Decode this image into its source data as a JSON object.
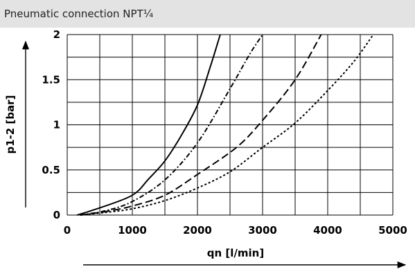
{
  "header": {
    "title": "Pneumatic connection NPT¼"
  },
  "chart_data": {
    "type": "line",
    "title": "",
    "xlabel": "qn [l/min]",
    "ylabel": "p1-2 [bar]",
    "xlim": [
      0,
      5000
    ],
    "ylim": [
      0,
      2
    ],
    "x_ticks": [
      "0",
      "1000",
      "2000",
      "3000",
      "4000",
      "5000"
    ],
    "y_ticks": [
      "0",
      "0.5",
      "1",
      "1.5",
      "2"
    ],
    "grid": true,
    "series": [
      {
        "style": "solid",
        "color": "#000000",
        "x": [
          150,
          500,
          1000,
          1250,
          1500,
          1750,
          2000,
          2200,
          2350
        ],
        "y": [
          0,
          0.08,
          0.22,
          0.4,
          0.6,
          0.88,
          1.22,
          1.65,
          2.0
        ]
      },
      {
        "style": "dash-dot",
        "color": "#000000",
        "x": [
          200,
          600,
          1000,
          1500,
          2000,
          2500,
          2800,
          3000
        ],
        "y": [
          0,
          0.05,
          0.15,
          0.39,
          0.8,
          1.4,
          1.78,
          2.0
        ]
      },
      {
        "style": "dash",
        "color": "#000000",
        "x": [
          200,
          600,
          1000,
          1500,
          2000,
          2600,
          3000,
          3500,
          3900
        ],
        "y": [
          0,
          0.04,
          0.1,
          0.22,
          0.45,
          0.75,
          1.05,
          1.5,
          2.0
        ]
      },
      {
        "style": "dot",
        "color": "#000000",
        "x": [
          200,
          600,
          1000,
          1500,
          2000,
          2500,
          3000,
          3500,
          4000,
          4400,
          4700
        ],
        "y": [
          0,
          0.03,
          0.07,
          0.16,
          0.3,
          0.48,
          0.75,
          1.02,
          1.38,
          1.7,
          2.0
        ]
      }
    ]
  }
}
